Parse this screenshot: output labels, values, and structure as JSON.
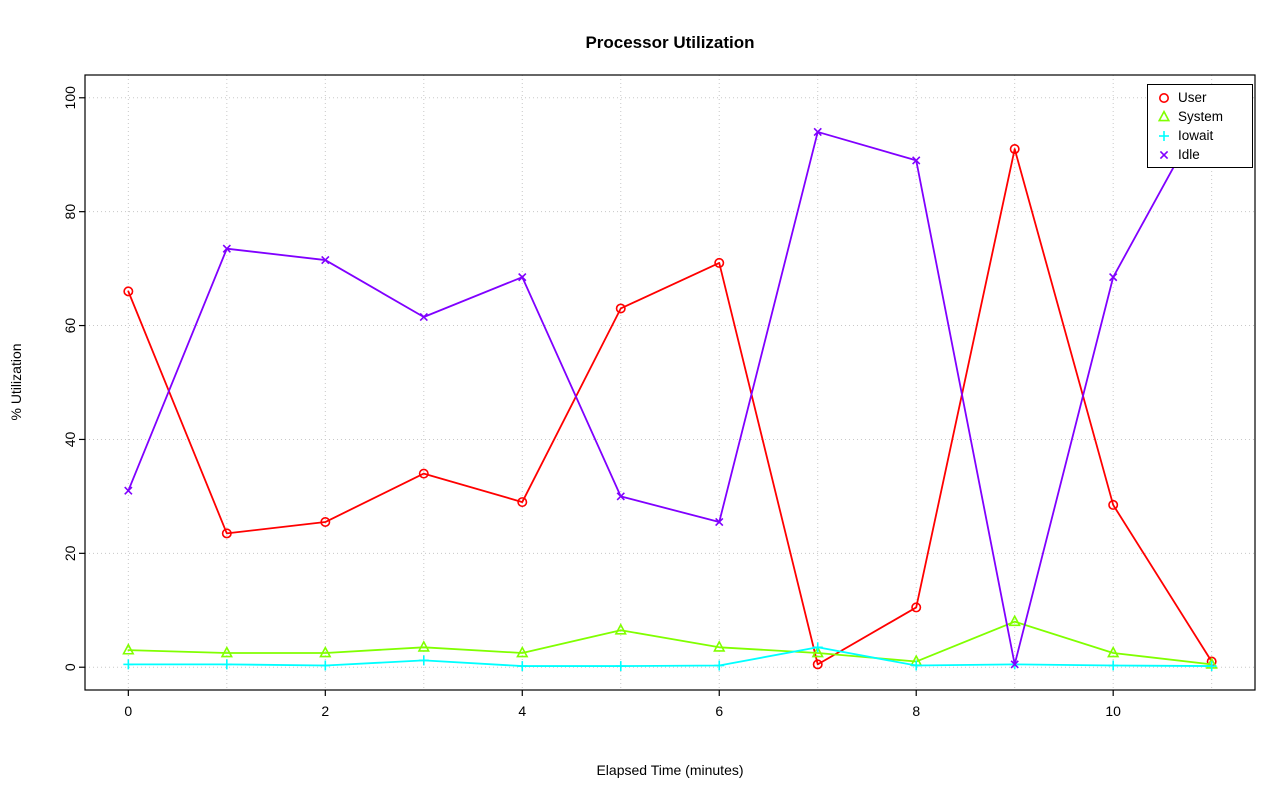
{
  "chart_data": {
    "type": "line",
    "title": "Processor Utilization",
    "xlabel": "Elapsed Time (minutes)",
    "ylabel": "% Utilization",
    "x": [
      0,
      1,
      2,
      3,
      4,
      5,
      6,
      7,
      8,
      9,
      10,
      11
    ],
    "series": [
      {
        "name": "User",
        "color": "#FF0000",
        "marker": "circle",
        "values": [
          66,
          23.5,
          25.5,
          34,
          29,
          63,
          71,
          0.5,
          10.5,
          91,
          28.5,
          1
        ]
      },
      {
        "name": "System",
        "color": "#80FF00",
        "marker": "triangle-up",
        "values": [
          3,
          2.5,
          2.5,
          3.5,
          2.5,
          6.5,
          3.5,
          2.5,
          1,
          8,
          2.5,
          0.5
        ]
      },
      {
        "name": "Iowait",
        "color": "#00FFFF",
        "marker": "plus",
        "values": [
          0.5,
          0.5,
          0.3,
          1.2,
          0.2,
          0.2,
          0.3,
          3.5,
          0.3,
          0.5,
          0.3,
          0.2
        ]
      },
      {
        "name": "Idle",
        "color": "#8000FF",
        "marker": "x",
        "values": [
          31,
          73.5,
          71.5,
          61.5,
          68.5,
          30,
          25.5,
          94,
          89,
          0.5,
          68.5,
          100
        ]
      }
    ],
    "xlim": [
      0,
      11
    ],
    "ylim": [
      0,
      100
    ],
    "x_ticks": [
      0,
      2,
      4,
      6,
      8,
      10
    ],
    "y_ticks": [
      0,
      20,
      40,
      60,
      80,
      100
    ],
    "grid_x": [
      0,
      1,
      2,
      3,
      4,
      5,
      6,
      7,
      8,
      9,
      10,
      11
    ],
    "grid_y": [
      0,
      20,
      40,
      60,
      80,
      100
    ],
    "grid": true,
    "legend_position": "top-right",
    "grid_color": "#c8c8c8",
    "axis_color": "#000000"
  }
}
